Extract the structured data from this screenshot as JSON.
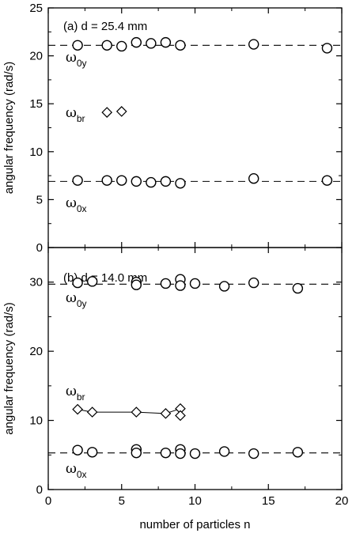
{
  "chart_data": [
    {
      "type": "scatter",
      "title": "(a) d = 25.4 mm",
      "xlabel": "number of particles n",
      "ylabel": "angular frequency (rad/s)",
      "xlim": [
        0,
        20
      ],
      "ylim": [
        0,
        25
      ],
      "xticks": [
        0,
        5,
        10,
        15,
        20
      ],
      "yticks": [
        0,
        5,
        10,
        15,
        20,
        25
      ],
      "ytick_labels": [
        "0",
        "5",
        "10",
        "15",
        "20",
        "25"
      ],
      "grid": false,
      "series": [
        {
          "name": "ω0y",
          "marker": "circle",
          "x": [
            2,
            4,
            5,
            6,
            7,
            8,
            9,
            14,
            19
          ],
          "y": [
            21.1,
            21.1,
            21.0,
            21.4,
            21.3,
            21.4,
            21.1,
            21.2,
            20.8
          ]
        },
        {
          "name": "ωbr",
          "marker": "diamond",
          "x": [
            4,
            5
          ],
          "y": [
            14.1,
            14.2
          ]
        },
        {
          "name": "ω0x",
          "marker": "circle",
          "x": [
            2,
            4,
            5,
            6,
            7,
            8,
            9,
            14,
            19
          ],
          "y": [
            7.0,
            7.0,
            7.0,
            6.9,
            6.8,
            6.9,
            6.7,
            7.2,
            7.0
          ]
        }
      ],
      "reference_lines": [
        {
          "series": "ω0y",
          "y": 21.1,
          "style": "dashed"
        },
        {
          "series": "ω0x",
          "y": 6.9,
          "style": "dashed"
        }
      ],
      "labels": [
        {
          "main": "ω",
          "sub": "0y"
        },
        {
          "main": "ω",
          "sub": "br"
        },
        {
          "main": "ω",
          "sub": "0x"
        }
      ]
    },
    {
      "type": "scatter",
      "title": "(b) d = 14.0 mm",
      "xlabel": "number of particles n",
      "ylabel": "angular frequency (rad/s)",
      "xlim": [
        0,
        20
      ],
      "ylim": [
        0,
        35
      ],
      "xticks": [
        0,
        5,
        10,
        15,
        20
      ],
      "xtick_labels": [
        "0",
        "5",
        "10",
        "15",
        "20"
      ],
      "yticks": [
        0,
        10,
        20,
        30
      ],
      "ytick_labels": [
        "0",
        "10",
        "20",
        "30"
      ],
      "grid": false,
      "series": [
        {
          "name": "ω0y",
          "marker": "circle",
          "x": [
            2,
            3,
            6,
            6,
            8,
            9,
            9,
            10,
            12,
            14,
            17
          ],
          "y": [
            29.9,
            30.1,
            30.0,
            29.6,
            29.8,
            30.4,
            29.5,
            29.8,
            29.4,
            29.9,
            29.1
          ]
        },
        {
          "name": "ωbr",
          "marker": "diamond",
          "connected": true,
          "x": [
            2,
            3,
            6,
            8,
            9,
            9
          ],
          "y": [
            11.6,
            11.2,
            11.2,
            11.0,
            11.7,
            10.7
          ]
        },
        {
          "name": "ω0x",
          "marker": "circle",
          "x": [
            2,
            3,
            6,
            6,
            8,
            9,
            9,
            10,
            12,
            14,
            17
          ],
          "y": [
            5.7,
            5.4,
            5.8,
            5.3,
            5.3,
            5.8,
            5.2,
            5.2,
            5.5,
            5.2,
            5.4
          ]
        }
      ],
      "reference_lines": [
        {
          "series": "ω0y",
          "y": 29.7,
          "style": "dashed"
        },
        {
          "series": "ω0x",
          "y": 5.3,
          "style": "dashed"
        }
      ],
      "labels": [
        {
          "main": "ω",
          "sub": "0y"
        },
        {
          "main": "ω",
          "sub": "br"
        },
        {
          "main": "ω",
          "sub": "0x"
        }
      ]
    }
  ]
}
